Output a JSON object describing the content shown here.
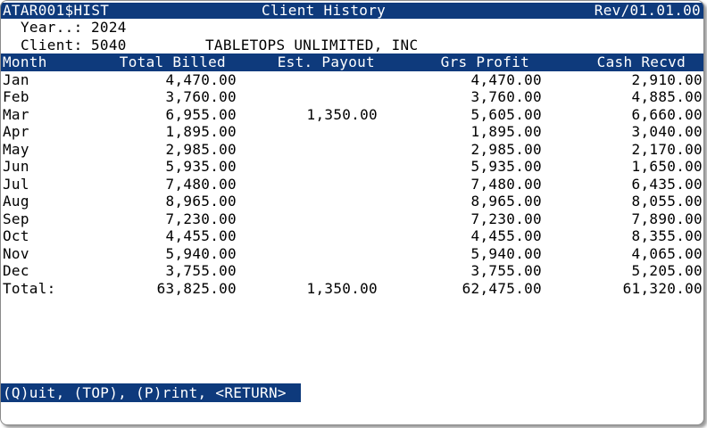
{
  "window": {
    "title_bar": {
      "program": "ATAR001$HIST",
      "title": "Client History",
      "revision": "Rev/01.01.00"
    },
    "fields": {
      "year_label": "Year..:",
      "year_value": "2024",
      "client_label": "Client:",
      "client_value": "5040",
      "client_name": "TABLETOPS UNLIMITED, INC"
    },
    "prompt": "(Q)uit, (TOP), (P)rint, <RETURN>"
  },
  "colors": {
    "bar_navy": "#0e3a7c",
    "bar_text": "#ffffff",
    "body_text": "#000000",
    "window_bg": "#ffffff"
  },
  "table": {
    "headers": [
      "Month",
      "Total Billed",
      "Est. Payout",
      "Grs Profit",
      "Cash Recvd"
    ],
    "rows": [
      {
        "month": "Jan",
        "total_billed": "4,470.00",
        "est_payout": "",
        "grs_profit": "4,470.00",
        "cash_recvd": "2,910.00"
      },
      {
        "month": "Feb",
        "total_billed": "3,760.00",
        "est_payout": "",
        "grs_profit": "3,760.00",
        "cash_recvd": "4,885.00"
      },
      {
        "month": "Mar",
        "total_billed": "6,955.00",
        "est_payout": "1,350.00",
        "grs_profit": "5,605.00",
        "cash_recvd": "6,660.00"
      },
      {
        "month": "Apr",
        "total_billed": "1,895.00",
        "est_payout": "",
        "grs_profit": "1,895.00",
        "cash_recvd": "3,040.00"
      },
      {
        "month": "May",
        "total_billed": "2,985.00",
        "est_payout": "",
        "grs_profit": "2,985.00",
        "cash_recvd": "2,170.00"
      },
      {
        "month": "Jun",
        "total_billed": "5,935.00",
        "est_payout": "",
        "grs_profit": "5,935.00",
        "cash_recvd": "1,650.00"
      },
      {
        "month": "Jul",
        "total_billed": "7,480.00",
        "est_payout": "",
        "grs_profit": "7,480.00",
        "cash_recvd": "6,435.00"
      },
      {
        "month": "Aug",
        "total_billed": "8,965.00",
        "est_payout": "",
        "grs_profit": "8,965.00",
        "cash_recvd": "8,055.00"
      },
      {
        "month": "Sep",
        "total_billed": "7,230.00",
        "est_payout": "",
        "grs_profit": "7,230.00",
        "cash_recvd": "7,890.00"
      },
      {
        "month": "Oct",
        "total_billed": "4,455.00",
        "est_payout": "",
        "grs_profit": "4,455.00",
        "cash_recvd": "8,355.00"
      },
      {
        "month": "Nov",
        "total_billed": "5,940.00",
        "est_payout": "",
        "grs_profit": "5,940.00",
        "cash_recvd": "4,065.00"
      },
      {
        "month": "Dec",
        "total_billed": "3,755.00",
        "est_payout": "",
        "grs_profit": "3,755.00",
        "cash_recvd": "5,205.00"
      },
      {
        "month": "Total:",
        "total_billed": "63,825.00",
        "est_payout": "1,350.00",
        "grs_profit": "62,475.00",
        "cash_recvd": "61,320.00"
      }
    ]
  }
}
